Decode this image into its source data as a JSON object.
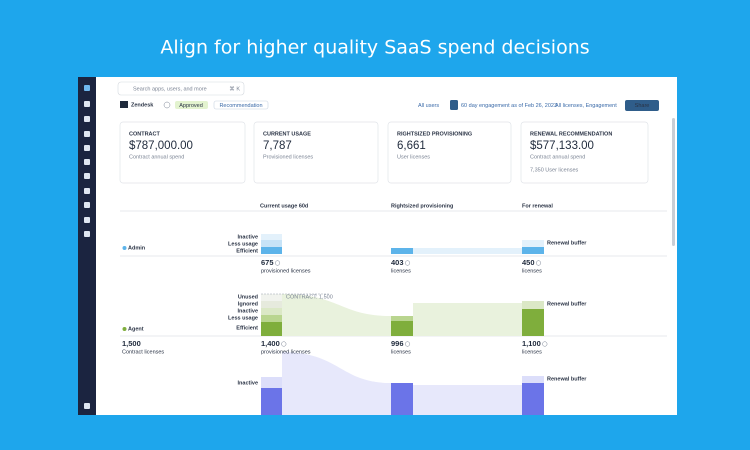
{
  "headline": "Align for higher quality SaaS spend decisions",
  "search": {
    "placeholder": "Search apps, users, and more",
    "shortcut": "⌘ K"
  },
  "app": {
    "name": "Zendesk",
    "status": "Approved",
    "mode": "Recommendation"
  },
  "filters": {
    "users": "All users",
    "engagement": "60 day engagement as of Feb 26, 2023",
    "licenses": "All licenses, Engagement",
    "share": "Share"
  },
  "cards": [
    {
      "label": "CONTRACT",
      "value": "$787,000.00",
      "sub": "Contract annual spend"
    },
    {
      "label": "CURRENT USAGE",
      "value": "7,787",
      "sub": "Provisioned licenses"
    },
    {
      "label": "RIGHTSIZED PROVISIONING",
      "value": "6,661",
      "sub": "User licenses"
    },
    {
      "label": "RENEWAL RECOMMENDATION",
      "value": "$577,133.00",
      "sub": "Contract annual spend",
      "extra": "7,350 User licenses"
    }
  ],
  "columns": [
    "Current usage 60d",
    "Rightsized provisioning",
    "For renewal"
  ],
  "rows": [
    {
      "name": "Admin",
      "segments": [
        "Inactive",
        "Less usage",
        "Efficient"
      ],
      "current": {
        "value": "675",
        "label": "provisioned licenses"
      },
      "rightsized": {
        "value": "403",
        "label": "licenses"
      },
      "renewal": {
        "value": "450",
        "label": "licenses"
      },
      "buffer": "Renewal buffer"
    },
    {
      "name": "Agent",
      "segments": [
        "Unused",
        "Ignored",
        "Inactive",
        "Less usage",
        "Efficient"
      ],
      "contract_note": "CONTRACT: 1,500",
      "contract": {
        "value": "1,500",
        "label": "Contract licenses"
      },
      "current": {
        "value": "1,400",
        "label": "provisioned licenses"
      },
      "rightsized": {
        "value": "996",
        "label": "licenses"
      },
      "renewal": {
        "value": "1,100",
        "label": "licenses"
      },
      "buffer": "Renewal buffer"
    },
    {
      "segments": [
        "Inactive"
      ],
      "buffer": "Renewal buffer"
    }
  ]
}
